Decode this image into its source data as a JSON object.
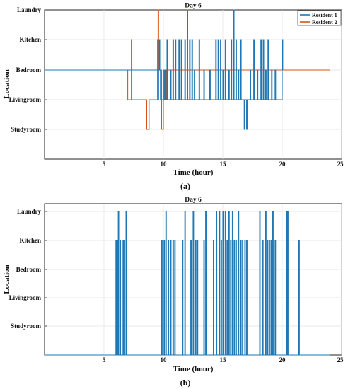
{
  "chart_data": [
    {
      "type": "line",
      "title": "Day 6",
      "xlabel": "Time (hour)",
      "ylabel": "Location",
      "caption": "(a)",
      "xlim": [
        0,
        25
      ],
      "x_ticks": [
        "5",
        "10",
        "15",
        "20",
        "25"
      ],
      "categories": [
        "Laundry",
        "Kitchen",
        "Bedroom",
        "Livingroom",
        "Studyroom"
      ],
      "legend_position": "top-right",
      "grid": true,
      "series": [
        {
          "name": "Resident 1",
          "color": "#1f77b4",
          "x": [
            0,
            9.6,
            9.6,
            9.6,
            9.65,
            9.65,
            9.7,
            9.7,
            9.75,
            9.75,
            10.1,
            10.1,
            10.15,
            10.15,
            10.3,
            10.3,
            10.35,
            10.35,
            10.6,
            10.6,
            10.65,
            10.65,
            10.8,
            10.8,
            10.85,
            10.85,
            11.0,
            11.0,
            11.05,
            11.05,
            11.3,
            11.3,
            11.35,
            11.35,
            11.5,
            11.5,
            11.55,
            11.55,
            11.8,
            11.8,
            11.85,
            11.85,
            12.0,
            12.0,
            12.05,
            12.05,
            12.2,
            12.2,
            12.25,
            12.25,
            12.4,
            12.4,
            12.45,
            12.45,
            12.6,
            12.6,
            12.65,
            12.65,
            13.0,
            13.0,
            13.05,
            13.05,
            13.4,
            13.4,
            13.45,
            13.45,
            13.9,
            13.9,
            13.95,
            13.95,
            14.4,
            14.4,
            14.45,
            14.45,
            14.6,
            14.6,
            14.65,
            14.65,
            14.8,
            14.8,
            14.85,
            14.85,
            15.0,
            15.0,
            15.05,
            15.05,
            15.2,
            15.2,
            15.25,
            15.25,
            15.5,
            15.5,
            15.55,
            15.55,
            15.7,
            15.7,
            15.75,
            15.75,
            15.9,
            15.9,
            15.95,
            15.95,
            16.1,
            16.1,
            16.15,
            16.15,
            16.3,
            16.3,
            16.35,
            16.35,
            16.5,
            16.5,
            16.55,
            16.55,
            16.8,
            16.8,
            16.85,
            16.85,
            17.0,
            17.0,
            17.05,
            17.05,
            17.3,
            17.3,
            17.35,
            17.35,
            17.6,
            17.6,
            17.65,
            17.65,
            17.9,
            17.9,
            17.95,
            17.95,
            18.2,
            18.2,
            18.25,
            18.25,
            18.4,
            18.4,
            18.45,
            18.45,
            18.6,
            18.6,
            18.65,
            18.65,
            18.8,
            18.8,
            18.85,
            18.85,
            19.1,
            19.1,
            19.15,
            19.15,
            19.4,
            19.4,
            19.45,
            19.45,
            20.0,
            20.0,
            20.05,
            20.05
          ],
          "y": [
            "Bedroom",
            "Bedroom",
            "Livingroom",
            "Bedroom",
            "Bedroom",
            "Kitchen",
            "Kitchen",
            "Bedroom",
            "Bedroom",
            "Livingroom",
            "Livingroom",
            "Bedroom",
            "Bedroom",
            "Livingroom",
            "Livingroom",
            "Kitchen",
            "Kitchen",
            "Livingroom",
            "Livingroom",
            "Bedroom",
            "Bedroom",
            "Livingroom",
            "Livingroom",
            "Kitchen",
            "Kitchen",
            "Livingroom",
            "Livingroom",
            "Kitchen",
            "Kitchen",
            "Livingroom",
            "Livingroom",
            "Kitchen",
            "Kitchen",
            "Livingroom",
            "Livingroom",
            "Kitchen",
            "Kitchen",
            "Livingroom",
            "Livingroom",
            "Kitchen",
            "Kitchen",
            "Livingroom",
            "Livingroom",
            "Laundry",
            "Laundry",
            "Livingroom",
            "Livingroom",
            "Kitchen",
            "Kitchen",
            "Livingroom",
            "Livingroom",
            "Kitchen",
            "Kitchen",
            "Livingroom",
            "Livingroom",
            "Bedroom",
            "Bedroom",
            "Livingroom",
            "Livingroom",
            "Kitchen",
            "Kitchen",
            "Livingroom",
            "Livingroom",
            "Bedroom",
            "Bedroom",
            "Livingroom",
            "Livingroom",
            "Bedroom",
            "Bedroom",
            "Livingroom",
            "Livingroom",
            "Kitchen",
            "Kitchen",
            "Livingroom",
            "Livingroom",
            "Kitchen",
            "Kitchen",
            "Livingroom",
            "Livingroom",
            "Kitchen",
            "Kitchen",
            "Livingroom",
            "Livingroom",
            "Bedroom",
            "Bedroom",
            "Livingroom",
            "Livingroom",
            "Kitchen",
            "Kitchen",
            "Livingroom",
            "Livingroom",
            "Bedroom",
            "Bedroom",
            "Livingroom",
            "Livingroom",
            "Kitchen",
            "Kitchen",
            "Livingroom",
            "Livingroom",
            "Laundry",
            "Laundry",
            "Livingroom",
            "Livingroom",
            "Kitchen",
            "Kitchen",
            "Livingroom",
            "Livingroom",
            "Bedroom",
            "Bedroom",
            "Livingroom",
            "Livingroom",
            "Kitchen",
            "Kitchen",
            "Livingroom",
            "Livingroom",
            "Studyroom",
            "Studyroom",
            "Livingroom",
            "Livingroom",
            "Studyroom",
            "Studyroom",
            "Livingroom",
            "Livingroom",
            "Bedroom",
            "Bedroom",
            "Livingroom",
            "Livingroom",
            "Kitchen",
            "Kitchen",
            "Livingroom",
            "Livingroom",
            "Bedroom",
            "Bedroom",
            "Livingroom",
            "Livingroom",
            "Kitchen",
            "Kitchen",
            "Livingroom",
            "Livingroom",
            "Kitchen",
            "Kitchen",
            "Livingroom",
            "Livingroom",
            "Bedroom",
            "Bedroom",
            "Livingroom",
            "Livingroom",
            "Kitchen",
            "Kitchen",
            "Livingroom",
            "Livingroom",
            "Bedroom",
            "Bedroom",
            "Livingroom",
            "Livingroom",
            "Bedroom",
            "Bedroom",
            "Livingroom",
            "Livingroom",
            "Kitchen",
            "Kitchen",
            "Bedroom"
          ]
        },
        {
          "name": "Resident 2",
          "color": "#d95319",
          "x": [
            0,
            7.0,
            7.0,
            7.3,
            7.3,
            7.35,
            7.35,
            7.6,
            7.6,
            8.6,
            8.6,
            8.8,
            8.8,
            9.5,
            9.5,
            9.55,
            9.55,
            9.6,
            9.6,
            9.85,
            9.85,
            10.0,
            10.0,
            10.05,
            10.05,
            10.25,
            10.25,
            10.3,
            10.3,
            24
          ],
          "y": [
            "Bedroom",
            "Bedroom",
            "Livingroom",
            "Livingroom",
            "Kitchen",
            "Kitchen",
            "Livingroom",
            "Livingroom",
            "Livingroom",
            "Livingroom",
            "Studyroom",
            "Studyroom",
            "Livingroom",
            "Livingroom",
            "Kitchen",
            "Kitchen",
            "Laundry",
            "Laundry",
            "Bedroom",
            "Bedroom",
            "Studyroom",
            "Studyroom",
            "Bedroom",
            "Bedroom",
            "Livingroom",
            "Livingroom",
            "Bedroom",
            "Bedroom",
            "Bedroom",
            "Bedroom"
          ]
        }
      ]
    },
    {
      "type": "line",
      "title": "Day 6",
      "xlabel": "Time (hour)",
      "ylabel": "Location",
      "caption": "(b)",
      "xlim": [
        0,
        25
      ],
      "x_ticks": [
        "5",
        "10",
        "15",
        "20",
        "25"
      ],
      "categories": [
        "Laundry",
        "Kitchen",
        "Bedroom",
        "Livingroom",
        "Studyroom"
      ],
      "grid": true,
      "series": [
        {
          "color": "#1f77b4",
          "spikes_from": "baseline",
          "end_x": 24,
          "spikes": [
            [
              6.0,
              "Kitchen"
            ],
            [
              6.1,
              "Kitchen"
            ],
            [
              6.2,
              "Laundry"
            ],
            [
              6.35,
              "Kitchen"
            ],
            [
              6.6,
              "Kitchen"
            ],
            [
              6.7,
              "Kitchen"
            ],
            [
              6.85,
              "Laundry"
            ],
            [
              9.85,
              "Kitchen"
            ],
            [
              10.05,
              "Kitchen"
            ],
            [
              10.2,
              "Laundry"
            ],
            [
              10.4,
              "Kitchen"
            ],
            [
              10.6,
              "Kitchen"
            ],
            [
              10.8,
              "Kitchen"
            ],
            [
              10.95,
              "Kitchen"
            ],
            [
              11.6,
              "Kitchen"
            ],
            [
              11.8,
              "Laundry"
            ],
            [
              12.3,
              "Kitchen"
            ],
            [
              12.5,
              "Laundry"
            ],
            [
              12.7,
              "Kitchen"
            ],
            [
              12.85,
              "Kitchen"
            ],
            [
              13.4,
              "Kitchen"
            ],
            [
              13.55,
              "Laundry"
            ],
            [
              14.2,
              "Kitchen"
            ],
            [
              14.45,
              "Laundry"
            ],
            [
              14.7,
              "Laundry"
            ],
            [
              14.85,
              "Kitchen"
            ],
            [
              15.0,
              "Laundry"
            ],
            [
              15.2,
              "Laundry"
            ],
            [
              15.35,
              "Kitchen"
            ],
            [
              15.5,
              "Laundry"
            ],
            [
              15.65,
              "Kitchen"
            ],
            [
              15.8,
              "Laundry"
            ],
            [
              15.95,
              "Kitchen"
            ],
            [
              16.1,
              "Kitchen"
            ],
            [
              16.3,
              "Laundry"
            ],
            [
              16.5,
              "Kitchen"
            ],
            [
              16.65,
              "Kitchen"
            ],
            [
              16.85,
              "Kitchen"
            ],
            [
              17.0,
              "Kitchen"
            ],
            [
              18.1,
              "Laundry"
            ],
            [
              18.35,
              "Kitchen"
            ],
            [
              18.6,
              "Laundry"
            ],
            [
              18.75,
              "Kitchen"
            ],
            [
              18.9,
              "Kitchen"
            ],
            [
              19.05,
              "Kitchen"
            ],
            [
              19.2,
              "Laundry"
            ],
            [
              19.4,
              "Kitchen"
            ],
            [
              20.35,
              "Laundry"
            ],
            [
              20.45,
              "Laundry"
            ],
            [
              21.4,
              "Kitchen"
            ]
          ]
        }
      ]
    }
  ]
}
